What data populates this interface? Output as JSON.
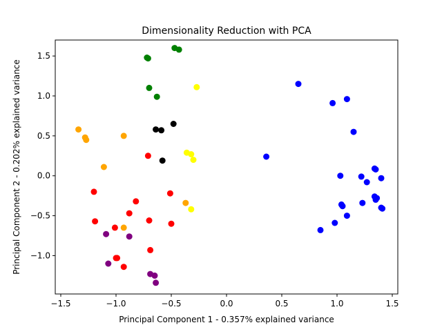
{
  "chart_data": {
    "type": "scatter",
    "title": "Dimensionality Reduction with PCA",
    "xlabel": "Principal Component 1 - 0.357% explained variance",
    "ylabel": "Principal Component 2 - 0.202% explained variance",
    "xlim": [
      -1.55,
      1.55
    ],
    "ylim": [
      -1.48,
      1.7
    ],
    "xticks": [
      -1.5,
      -1.0,
      -0.5,
      0.0,
      0.5,
      1.0,
      1.5
    ],
    "xtick_labels": [
      "−1.5",
      "−1.0",
      "−0.5",
      "0.0",
      "0.5",
      "1.0",
      "1.5"
    ],
    "yticks": [
      -1.0,
      -0.5,
      0.0,
      0.5,
      1.0,
      1.5
    ],
    "ytick_labels": [
      "−1.0",
      "−0.5",
      "0.0",
      "0.5",
      "1.0",
      "1.5"
    ],
    "grid": false,
    "legend": "none",
    "series": [
      {
        "color": "#0000ff",
        "points": [
          [
            0.65,
            1.15
          ],
          [
            0.96,
            0.91
          ],
          [
            1.09,
            0.96
          ],
          [
            1.15,
            0.55
          ],
          [
            0.36,
            0.24
          ],
          [
            1.03,
            0.0
          ],
          [
            1.22,
            -0.01
          ],
          [
            1.34,
            0.09
          ],
          [
            1.35,
            0.08
          ],
          [
            1.4,
            -0.03
          ],
          [
            1.27,
            -0.08
          ],
          [
            1.34,
            -0.26
          ],
          [
            1.36,
            -0.28
          ],
          [
            1.35,
            -0.3
          ],
          [
            1.04,
            -0.36
          ],
          [
            1.05,
            -0.38
          ],
          [
            1.09,
            -0.5
          ],
          [
            1.23,
            -0.34
          ],
          [
            1.4,
            -0.4
          ],
          [
            1.41,
            -0.41
          ],
          [
            0.98,
            -0.59
          ],
          [
            0.85,
            -0.68
          ]
        ]
      },
      {
        "color": "#008000",
        "points": [
          [
            -0.47,
            1.6
          ],
          [
            -0.43,
            1.58
          ],
          [
            -0.72,
            1.48
          ],
          [
            -0.71,
            1.47
          ],
          [
            -0.7,
            1.1
          ],
          [
            -0.63,
            0.99
          ]
        ]
      },
      {
        "color": "#ffff00",
        "points": [
          [
            -0.27,
            1.11
          ],
          [
            -0.36,
            0.29
          ],
          [
            -0.32,
            0.27
          ],
          [
            -0.3,
            0.2
          ],
          [
            -0.32,
            -0.42
          ]
        ]
      },
      {
        "color": "#000000",
        "points": [
          [
            -0.64,
            0.58
          ],
          [
            -0.59,
            0.57
          ],
          [
            -0.48,
            0.65
          ],
          [
            -0.58,
            0.19
          ]
        ]
      },
      {
        "color": "#ffa500",
        "points": [
          [
            -1.34,
            0.58
          ],
          [
            -1.28,
            0.48
          ],
          [
            -1.27,
            0.45
          ],
          [
            -0.93,
            0.5
          ],
          [
            -1.11,
            0.11
          ],
          [
            -0.37,
            -0.34
          ],
          [
            -0.93,
            -0.65
          ]
        ]
      },
      {
        "color": "#ff0000",
        "points": [
          [
            -0.71,
            0.25
          ],
          [
            -1.2,
            -0.2
          ],
          [
            -1.19,
            -0.57
          ],
          [
            -0.82,
            -0.32
          ],
          [
            -0.88,
            -0.47
          ],
          [
            -0.51,
            -0.22
          ],
          [
            -0.5,
            -0.6
          ],
          [
            -0.7,
            -0.56
          ],
          [
            -1.01,
            -0.65
          ],
          [
            -0.69,
            -0.93
          ],
          [
            -1.0,
            -1.03
          ],
          [
            -0.99,
            -1.03
          ],
          [
            -0.93,
            -1.14
          ]
        ]
      },
      {
        "color": "#800080",
        "points": [
          [
            -1.09,
            -0.73
          ],
          [
            -0.88,
            -0.76
          ],
          [
            -1.07,
            -1.1
          ],
          [
            -0.69,
            -1.23
          ],
          [
            -0.65,
            -1.25
          ],
          [
            -0.64,
            -1.34
          ]
        ]
      }
    ]
  }
}
